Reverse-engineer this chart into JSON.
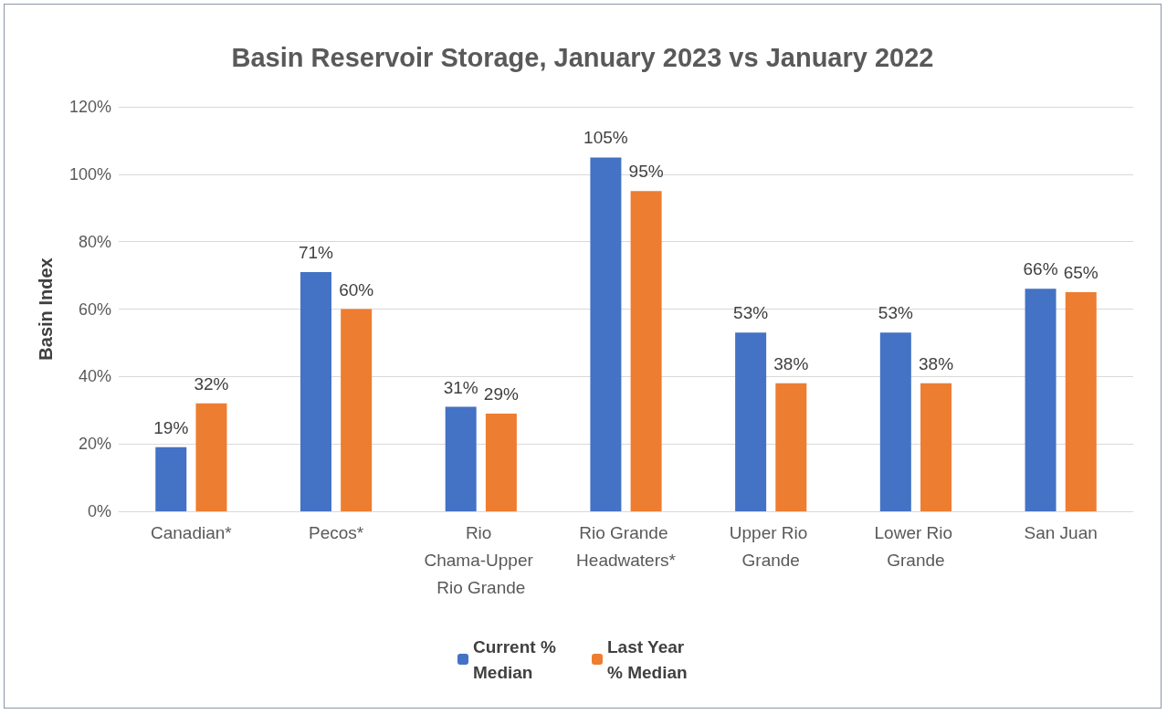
{
  "chart_data": {
    "type": "bar",
    "title": "Basin Reservoir Storage, January 2023 vs January 2022",
    "ylabel": "Basin Index",
    "categories": [
      "Canadian*",
      "Pecos*",
      "Rio Chama-Upper Rio Grande",
      "Rio Grande Headwaters*",
      "Upper Rio Grande",
      "Lower Rio Grande",
      "San Juan"
    ],
    "series": [
      {
        "name": "Current % Median",
        "color": "#4472c4",
        "values": [
          19,
          71,
          31,
          105,
          53,
          53,
          66
        ],
        "value_labels": [
          "19%",
          "71%",
          "31%",
          "105%",
          "53%",
          "53%",
          "66%"
        ]
      },
      {
        "name": "Last Year % Median",
        "color": "#ed7d31",
        "values": [
          32,
          60,
          29,
          95,
          38,
          38,
          65
        ],
        "value_labels": [
          "32%",
          "60%",
          "29%",
          "95%",
          "38%",
          "38%",
          "65%"
        ]
      }
    ],
    "ylim": [
      0,
      120
    ],
    "yticks": [
      {
        "value": 0,
        "label": "0%"
      },
      {
        "value": 20,
        "label": "20%"
      },
      {
        "value": 40,
        "label": "40%"
      },
      {
        "value": 60,
        "label": "60%"
      },
      {
        "value": 80,
        "label": "80%"
      },
      {
        "value": 100,
        "label": "100%"
      },
      {
        "value": 120,
        "label": "120%"
      }
    ],
    "grid": "y",
    "legend": "bottom"
  }
}
